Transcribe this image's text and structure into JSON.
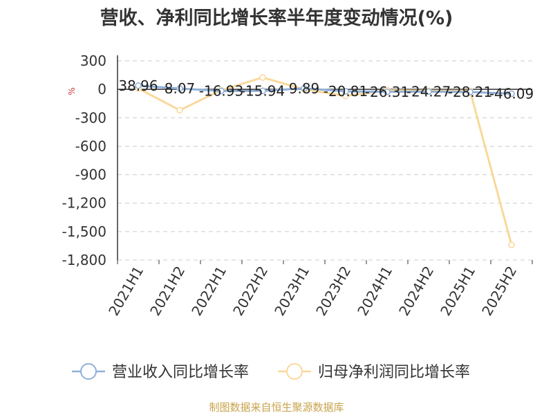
{
  "title": "营收、净利同比增长率半年度变动情况(%)",
  "source_note": "制图数据来自恒生聚源数据库",
  "chart_data": {
    "type": "line",
    "title": "营收、净利同比增长率半年度变动情况(%)",
    "ylabel": "%",
    "ylim": [
      -1800,
      300
    ],
    "yticks": [
      300,
      0,
      -300,
      -600,
      -900,
      -1200,
      -1500,
      -1800
    ],
    "ytick_labels": [
      "300",
      "0",
      "-300",
      "-600",
      "-900",
      "-1,200",
      "-1,500",
      "-1,800"
    ],
    "grid": true,
    "legend_position": "bottom",
    "categories": [
      "2021H1",
      "2021H2",
      "2022H1",
      "2022H2",
      "2023H1",
      "2023H2",
      "2024H1",
      "2024H2",
      "2025H1",
      "2025H2"
    ],
    "series": [
      {
        "name": "营业收入同比增长率",
        "color": "#8fb0d8",
        "values": [
          38.96,
          8.07,
          -16.93,
          -15.94,
          9.89,
          -20.81,
          -26.31,
          -24.27,
          -28.21,
          -46.09
        ],
        "labels": [
          "38.96",
          "8.07",
          "-16.93",
          "-15.94",
          "9.89",
          "-20.81",
          "-26.31",
          "-24.27",
          "-28.21",
          "-46.09"
        ]
      },
      {
        "name": "归母净利润同比增长率",
        "color": "#f9d89a",
        "values": [
          10,
          -220,
          -10,
          125,
          0,
          -70,
          -10,
          -15,
          -15,
          -1640
        ]
      }
    ]
  }
}
